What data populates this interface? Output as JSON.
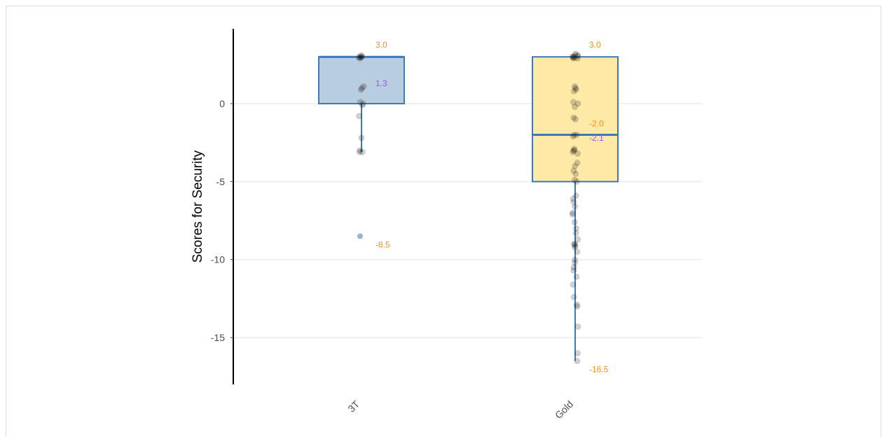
{
  "chart_data": {
    "type": "box",
    "title": "",
    "xlabel": "",
    "ylabel": "Scores for Security",
    "ylim": [
      -18,
      4.8
    ],
    "yticks": [
      0,
      -5,
      -10,
      -15
    ],
    "ytick_labels": [
      "0",
      "-5",
      "-10",
      "-15"
    ],
    "grid": "horizontal",
    "categories": [
      "3T",
      "Gold"
    ],
    "boxes": [
      {
        "category": "3T",
        "q1": 0.0,
        "median": 3.0,
        "q3": 3.0,
        "whisker_low": -3.1,
        "whisker_high": 3.0,
        "mean": 1.3,
        "outliers": [
          -8.5
        ],
        "fill": "#b9cde0",
        "stroke": "#3f79b5",
        "label_max": "3.0",
        "label_mean": "1.3",
        "label_outlier": "-8.5",
        "points": [
          3.1,
          3.0,
          3.0,
          2.9,
          3.0,
          3.0,
          2.95,
          1.1,
          1.0,
          0.9,
          0.1,
          0.0,
          -0.1,
          -0.8,
          -2.2,
          -3.0,
          -3.1,
          -3.1
        ]
      },
      {
        "category": "Gold",
        "q1": -5.0,
        "median": -2.0,
        "q3": 3.0,
        "whisker_low": -16.5,
        "whisker_high": 3.0,
        "mean": -2.1,
        "outliers": [],
        "fill": "#feeaa6",
        "stroke": "#3f79b5",
        "label_max": "3.0",
        "label_median": "-2.0",
        "label_mean": "-2.1",
        "label_min": "-16.5",
        "points": [
          3.2,
          3.1,
          3.0,
          3.0,
          2.9,
          3.1,
          3.0,
          2.95,
          3.05,
          2.9,
          1.1,
          1.0,
          0.9,
          0.8,
          0.1,
          0.0,
          -0.2,
          -0.9,
          -1.0,
          -2.0,
          -2.1,
          -2.0,
          -2.9,
          -3.0,
          -3.1,
          -3.2,
          -3.0,
          -3.8,
          -4.0,
          -4.3,
          -4.5,
          -4.9,
          -5.0,
          -5.9,
          -6.1,
          -6.3,
          -6.6,
          -7.0,
          -7.1,
          -7.6,
          -8.0,
          -8.3,
          -8.7,
          -9.0,
          -9.0,
          -9.1,
          -9.2,
          -9.5,
          -10.0,
          -10.2,
          -10.5,
          -10.7,
          -11.1,
          -11.6,
          -12.4,
          -12.9,
          -13.0,
          -14.3,
          -16.0,
          -16.5
        ]
      }
    ],
    "colors": {
      "median_label": "#f28e2b",
      "mean_label": "#a64ff2",
      "whisker": "#3f79b5",
      "points": "#000000",
      "grid": "#ebebeb"
    }
  }
}
